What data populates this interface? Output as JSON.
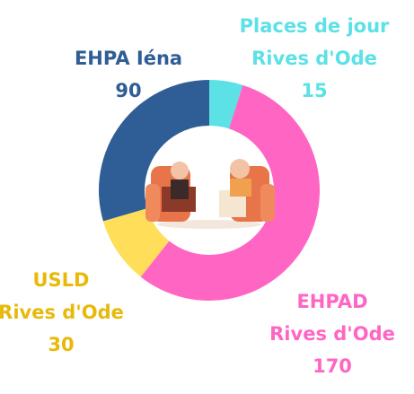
{
  "chart_data": {
    "type": "donut",
    "categories": [
      [
        "Places de jour",
        "Rives d'Ode"
      ],
      [
        "EHPAD",
        "Rives d'Ode"
      ],
      [
        "USLD",
        "Rives d'Ode"
      ],
      [
        "EHPA Iéna"
      ]
    ],
    "values": [
      15,
      170,
      30,
      90
    ],
    "colors": [
      "#5ce1e6",
      "#ff66c4",
      "#ffde59",
      "#2f5d95"
    ],
    "label_colors": [
      "#5ce1e6",
      "#ff66c4",
      "#e8b90a",
      "#2f5d95"
    ]
  }
}
